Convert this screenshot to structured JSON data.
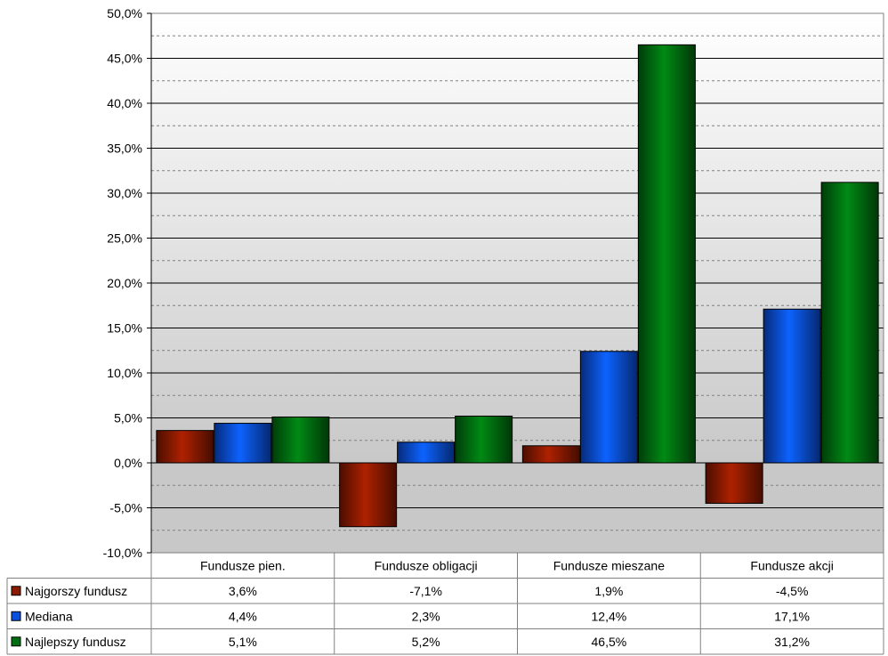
{
  "chart_data": {
    "type": "bar",
    "categories": [
      "Fundusze pien.",
      "Fundusze obligacji",
      "Fundusze mieszane",
      "Fundusze akcji"
    ],
    "series": [
      {
        "name": "Najgorszy fundusz",
        "values": [
          3.6,
          -7.1,
          1.9,
          -4.5
        ],
        "labels": [
          "3,6%",
          "-7,1%",
          "1,9%",
          "-4,5%"
        ],
        "color": "#8B1A00"
      },
      {
        "name": "Mediana",
        "values": [
          4.4,
          2.3,
          12.4,
          17.1
        ],
        "labels": [
          "4,4%",
          "2,3%",
          "12,4%",
          "17,1%"
        ],
        "color": "#0A4FE0"
      },
      {
        "name": "Najlepszy fundusz",
        "values": [
          5.1,
          5.2,
          46.5,
          31.2
        ],
        "labels": [
          "5,1%",
          "5,2%",
          "46,5%",
          "31,2%"
        ],
        "color": "#006E10"
      }
    ],
    "ylim": [
      -10,
      50
    ],
    "ytick_step": 5,
    "ytick_labels": [
      "-10,0%",
      "-5,0%",
      "0,0%",
      "5,0%",
      "10,0%",
      "15,0%",
      "20,0%",
      "25,0%",
      "30,0%",
      "35,0%",
      "40,0%",
      "45,0%",
      "50,0%"
    ],
    "grid": true,
    "legend": "data-table"
  }
}
